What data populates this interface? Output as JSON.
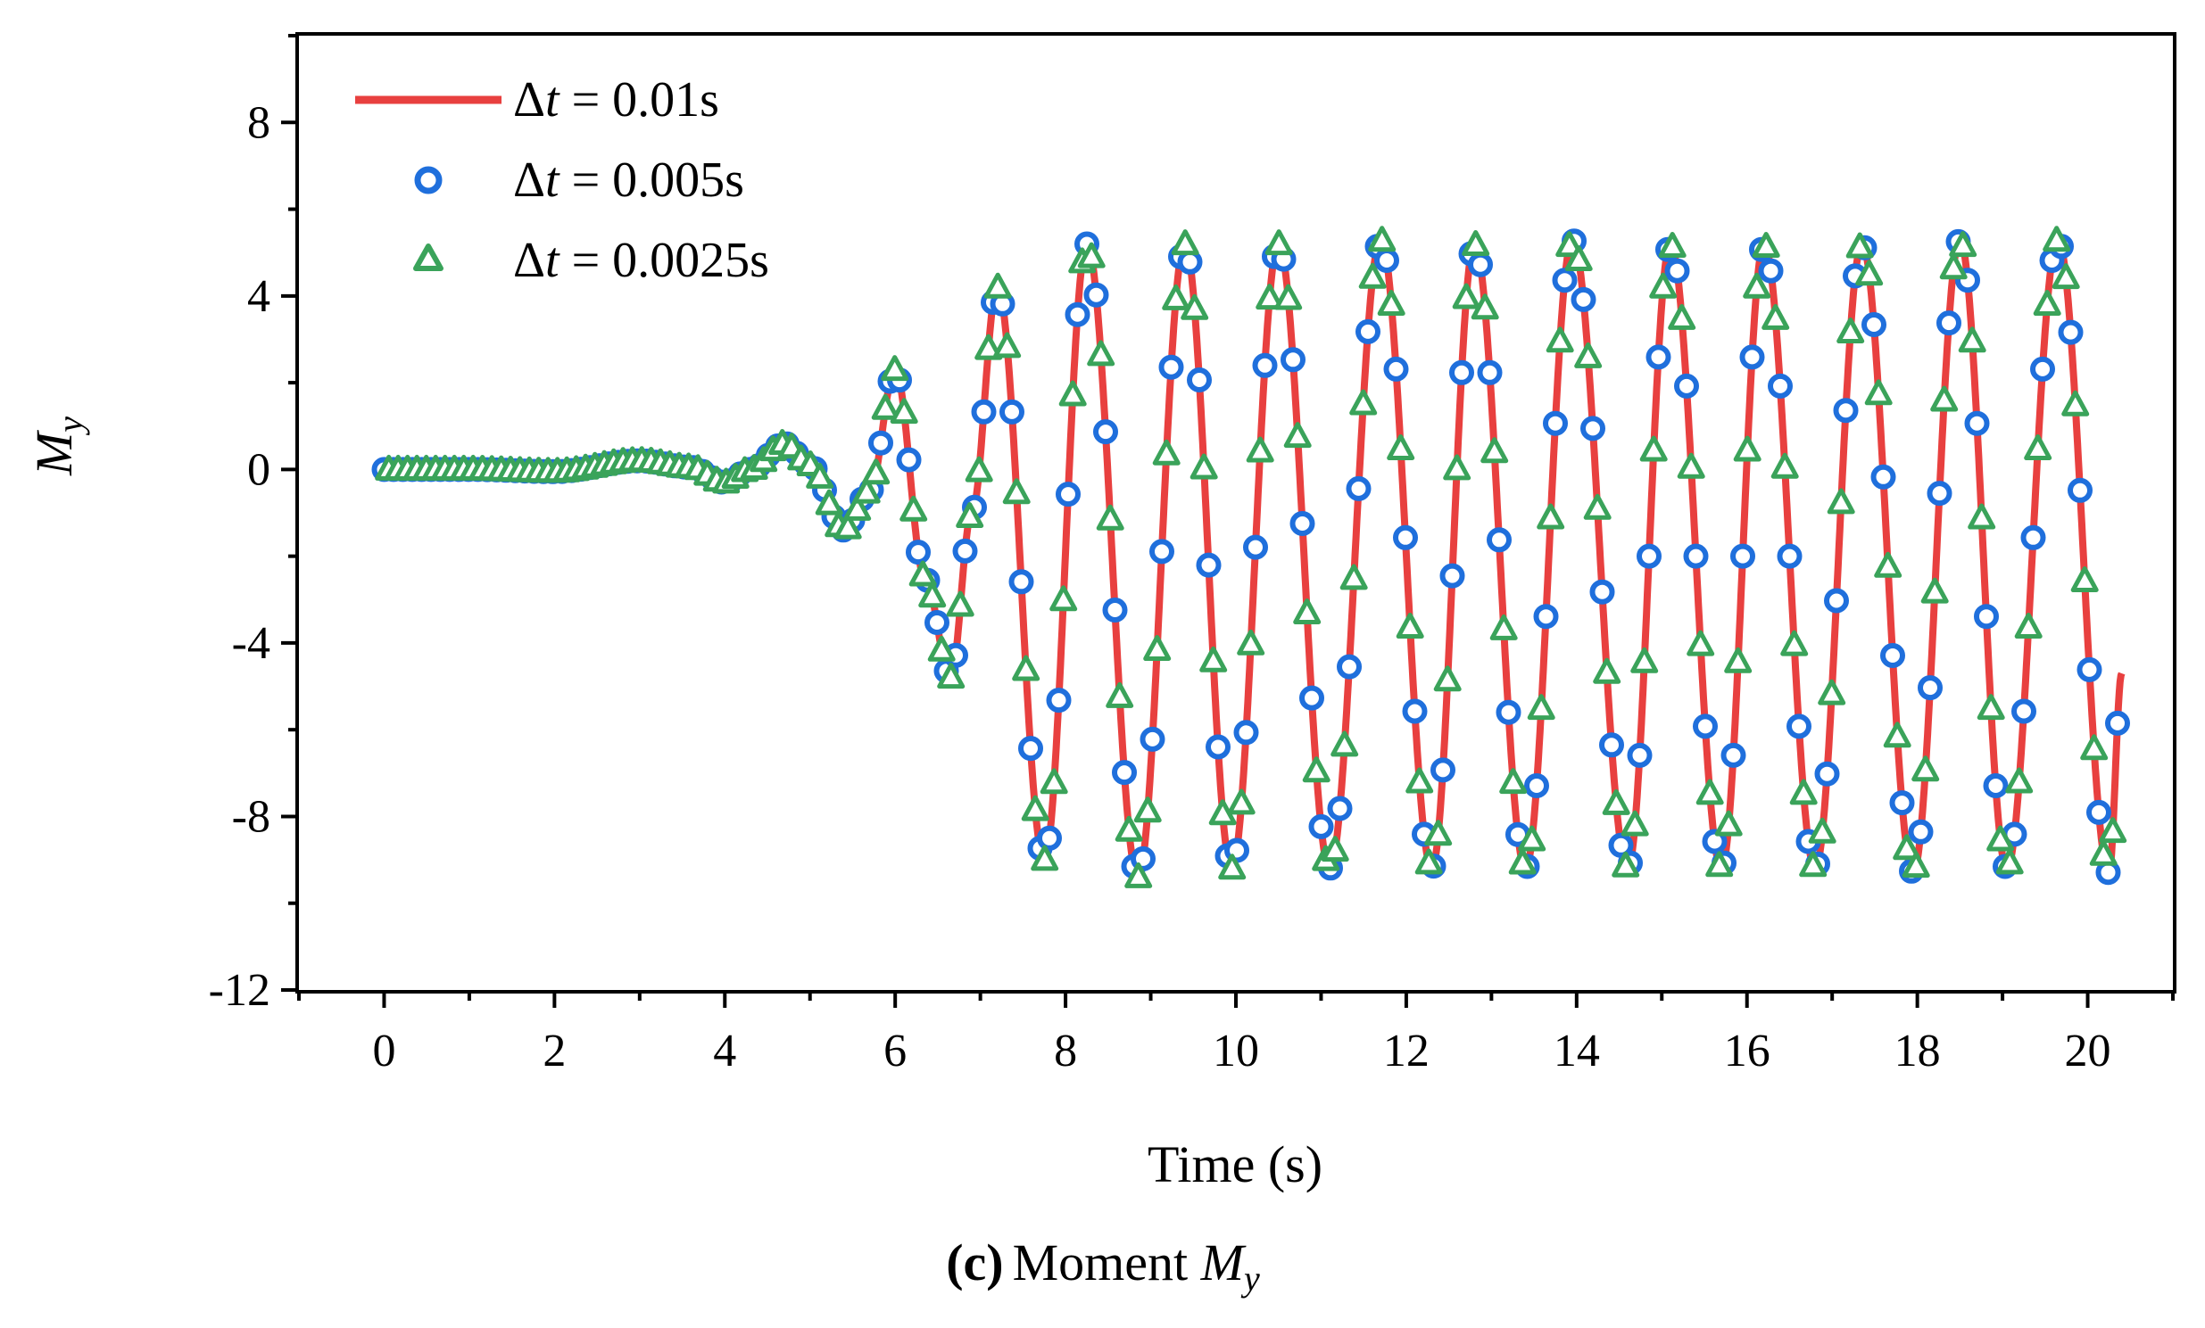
{
  "chart_data": {
    "type": "line",
    "title": "",
    "xlabel": "Time (s)",
    "ylabel": "M_y",
    "ylabel_main": "M",
    "ylabel_sub": "y",
    "xlim": [
      -1,
      21
    ],
    "ylim": [
      -12,
      10
    ],
    "xticks": [
      0,
      2,
      4,
      6,
      8,
      10,
      12,
      14,
      16,
      18,
      20
    ],
    "yticks": [
      -12,
      -8,
      -4,
      0,
      4,
      8
    ],
    "xtick_labels": [
      "0",
      "2",
      "4",
      "6",
      "8",
      "10",
      "12",
      "14",
      "16",
      "18",
      "20"
    ],
    "ytick_labels": [
      "-12",
      "-8",
      "-4",
      "0",
      "4",
      "8"
    ],
    "legend_position": "top-left",
    "series": [
      {
        "name": "Δt = 0.01s",
        "legend_prefix": "Δ",
        "legend_var": "t",
        "legend_value": " = 0.01s",
        "style": "line",
        "color": "#e8403f"
      },
      {
        "name": "Δt = 0.005s",
        "legend_prefix": "Δ",
        "legend_var": "t",
        "legend_value": " = 0.005s",
        "style": "circle",
        "color": "#1f6fdc"
      },
      {
        "name": "Δt = 0.0025s",
        "legend_prefix": "Δ",
        "legend_var": "t",
        "legend_value": " = 0.0025s",
        "style": "triangle",
        "color": "#3aa35a"
      }
    ],
    "waveform": {
      "t_end": 20.4,
      "keyframes": [
        [
          0,
          0
        ],
        [
          1.0,
          0.0
        ],
        [
          2.0,
          -0.05
        ],
        [
          3.0,
          0.2
        ],
        [
          3.6,
          0.05
        ],
        [
          4.0,
          -0.3
        ],
        [
          4.3,
          0.0
        ],
        [
          4.7,
          0.6
        ],
        [
          5.0,
          0.1
        ],
        [
          5.4,
          -1.4
        ],
        [
          5.7,
          -0.5
        ],
        [
          6.0,
          2.3
        ],
        [
          6.35,
          -2.5
        ],
        [
          6.65,
          -4.8
        ],
        [
          6.9,
          -1.0
        ],
        [
          7.2,
          4.2
        ],
        [
          7.75,
          -9.0
        ],
        [
          8.25,
          5.2
        ],
        [
          8.85,
          -9.4
        ],
        [
          9.4,
          5.2
        ],
        [
          9.95,
          -9.2
        ],
        [
          10.5,
          5.2
        ],
        [
          11.1,
          -9.2
        ],
        [
          11.7,
          5.3
        ],
        [
          12.3,
          -9.2
        ],
        [
          12.8,
          5.2
        ],
        [
          13.4,
          -9.2
        ],
        [
          13.95,
          5.3
        ],
        [
          14.6,
          -9.2
        ],
        [
          15.1,
          5.2
        ],
        [
          15.7,
          -9.2
        ],
        [
          16.2,
          5.2
        ],
        [
          16.8,
          -9.2
        ],
        [
          17.35,
          5.2
        ],
        [
          17.95,
          -9.3
        ],
        [
          18.5,
          5.3
        ],
        [
          19.05,
          -9.2
        ],
        [
          19.65,
          5.3
        ],
        [
          20.25,
          -9.3
        ],
        [
          20.4,
          -4.7
        ]
      ]
    }
  },
  "caption": {
    "label": "(c)",
    "text": "Moment ",
    "var_main": "M",
    "var_sub": "y"
  }
}
